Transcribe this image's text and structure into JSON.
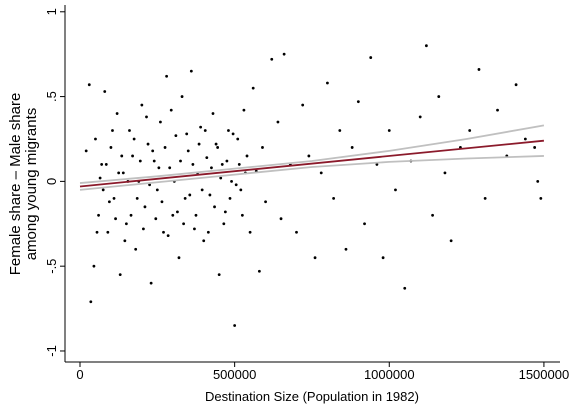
{
  "chart_data": {
    "type": "scatter",
    "x_label": "Destination Size (Population in 1982)",
    "y_label": [
      "Female share – Male share",
      "among young migrants"
    ],
    "xlim": [
      -48500,
      1552000
    ],
    "ylim": [
      -1.065,
      1.04
    ],
    "xticks": [
      0,
      500000,
      1000000,
      1500000
    ],
    "yticks": [
      {
        "value": -1,
        "label": "-1"
      },
      {
        "value": -0.5,
        "label": "-.5"
      },
      0,
      {
        "value": 0.5,
        "label": ".5"
      },
      1
    ],
    "grid": false,
    "series": [
      {
        "style": "points",
        "color": "#000000",
        "x": [
          30000,
          45000,
          50000,
          60000,
          70000,
          80000,
          90000,
          100000,
          110000,
          120000,
          130000,
          140000,
          150000,
          160000,
          170000,
          180000,
          190000,
          200000,
          210000,
          220000,
          230000,
          240000,
          250000,
          260000,
          270000,
          280000,
          290000,
          300000,
          310000,
          320000,
          330000,
          340000,
          350000,
          360000,
          370000,
          380000,
          390000,
          400000,
          410000,
          420000,
          430000,
          440000,
          450000,
          460000,
          470000,
          480000,
          490000,
          500000,
          510000,
          520000,
          530000,
          540000,
          550000,
          560000,
          570000,
          580000,
          590000,
          600000,
          620000,
          640000,
          650000,
          660000,
          680000,
          700000,
          720000,
          740000,
          760000,
          780000,
          800000,
          820000,
          840000,
          860000,
          880000,
          900000,
          920000,
          940000,
          960000,
          980000,
          1000000,
          1020000,
          1050000,
          1070000,
          1100000,
          1120000,
          1140000,
          1160000,
          1180000,
          1200000,
          1230000,
          1260000,
          1290000,
          1310000,
          1350000,
          1380000,
          1410000,
          1440000,
          1470000,
          1490000,
          1480000,
          20000,
          35000,
          55000,
          65000,
          75000,
          85000,
          95000,
          105000,
          115000,
          125000,
          135000,
          145000,
          155000,
          165000,
          175000,
          185000,
          195000,
          205000,
          215000,
          225000,
          235000,
          245000,
          255000,
          265000,
          275000,
          285000,
          295000,
          305000,
          315000,
          325000,
          335000,
          345000,
          355000,
          365000,
          375000,
          385000,
          395000,
          405000,
          415000,
          425000,
          435000,
          445000,
          455000,
          465000,
          475000,
          485000,
          495000,
          505000,
          515000,
          525000,
          535000
        ],
        "y": [
          0.57,
          -0.5,
          0.25,
          -0.2,
          0.1,
          0.53,
          -0.3,
          0.2,
          -0.1,
          0.4,
          -0.55,
          0.05,
          -0.25,
          0.3,
          0.15,
          -0.4,
          0.0,
          0.45,
          -0.15,
          0.22,
          -0.6,
          0.12,
          -0.05,
          0.35,
          -0.3,
          0.62,
          0.08,
          -0.2,
          0.27,
          -0.45,
          0.5,
          -0.1,
          0.18,
          0.65,
          -0.28,
          0.05,
          0.32,
          -0.35,
          0.14,
          -0.08,
          0.4,
          0.22,
          -0.55,
          0.1,
          -0.18,
          0.3,
          0.0,
          -0.85,
          0.25,
          -0.05,
          0.42,
          0.15,
          -0.3,
          0.55,
          0.06,
          -0.53,
          0.2,
          -0.12,
          0.72,
          0.35,
          -0.22,
          0.75,
          0.1,
          -0.3,
          0.45,
          0.15,
          -0.45,
          0.05,
          0.58,
          -0.1,
          0.3,
          -0.4,
          0.2,
          0.47,
          -0.25,
          0.73,
          0.1,
          -0.45,
          0.3,
          -0.05,
          -0.63,
          0.12,
          0.38,
          0.8,
          -0.2,
          0.5,
          0.05,
          -0.35,
          0.2,
          0.3,
          0.66,
          -0.1,
          0.42,
          0.15,
          0.57,
          0.25,
          0.2,
          -0.1,
          0.0,
          0.18,
          -0.71,
          -0.3,
          0.02,
          -0.05,
          0.1,
          -0.12,
          0.3,
          -0.22,
          0.05,
          0.15,
          -0.35,
          0.0,
          -0.2,
          0.25,
          -0.1,
          0.12,
          -0.28,
          0.38,
          -0.02,
          0.18,
          -0.22,
          0.08,
          -0.12,
          0.2,
          -0.32,
          0.42,
          0.0,
          -0.18,
          0.12,
          -0.25,
          0.28,
          -0.08,
          0.1,
          -0.2,
          0.22,
          -0.05,
          0.3,
          -0.3,
          0.08,
          -0.15,
          0.2,
          0.02,
          -0.25,
          0.12,
          -0.1,
          0.28,
          -0.02,
          0.1,
          -0.2,
          0.05
        ]
      },
      {
        "style": "line",
        "color": "#c0c0c0",
        "x": [
          0,
          250000,
          500000,
          750000,
          1000000,
          1250000,
          1500000
        ],
        "y": [
          -0.01,
          0.03,
          0.075,
          0.12,
          0.18,
          0.25,
          0.33
        ]
      },
      {
        "style": "line",
        "color": "#c0c0c0",
        "x": [
          0,
          250000,
          500000,
          750000,
          1000000,
          1250000,
          1500000
        ],
        "y": [
          -0.05,
          -0.005,
          0.04,
          0.085,
          0.115,
          0.135,
          0.15
        ]
      },
      {
        "style": "line",
        "color": "#8b1a2b",
        "x": [
          0,
          1500000
        ],
        "y": [
          -0.03,
          0.24
        ]
      }
    ]
  }
}
